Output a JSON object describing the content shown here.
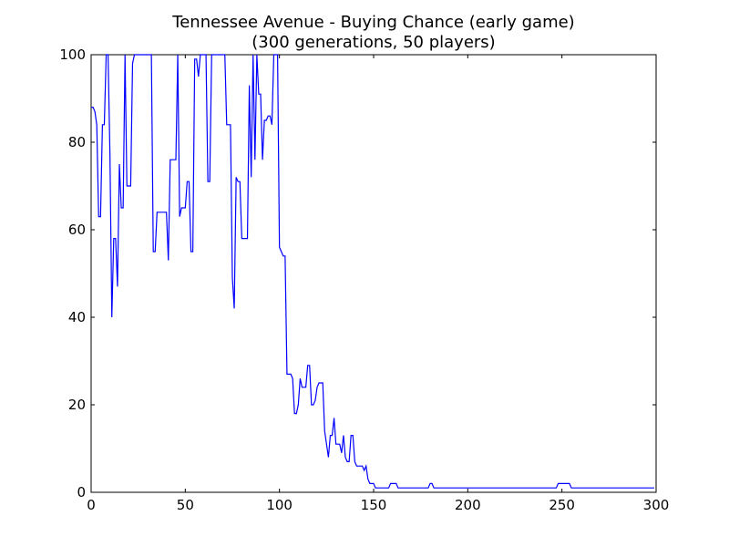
{
  "chart_data": {
    "type": "line",
    "title": "Tennessee Avenue - Buying Chance (early game)",
    "subtitle": "(300 generations, 50 players)",
    "color": "#0000ff",
    "xlim": [
      0,
      300
    ],
    "xticks": [
      0,
      50,
      100,
      150,
      200,
      250,
      300
    ],
    "ylim": [
      0,
      100
    ],
    "yticks": [
      0,
      20,
      40,
      60,
      80,
      100
    ],
    "x": [
      0,
      1,
      2,
      3,
      4,
      5,
      6,
      7,
      8,
      9,
      10,
      11,
      12,
      13,
      14,
      15,
      16,
      17,
      18,
      19,
      20,
      21,
      22,
      23,
      24,
      25,
      26,
      27,
      28,
      29,
      30,
      31,
      32,
      33,
      34,
      35,
      36,
      37,
      38,
      39,
      40,
      41,
      42,
      43,
      44,
      45,
      46,
      47,
      48,
      49,
      50,
      51,
      52,
      53,
      54,
      55,
      56,
      57,
      58,
      59,
      60,
      61,
      62,
      63,
      64,
      65,
      66,
      67,
      68,
      69,
      70,
      71,
      72,
      73,
      74,
      75,
      76,
      77,
      78,
      79,
      80,
      81,
      82,
      83,
      84,
      85,
      86,
      87,
      88,
      89,
      90,
      91,
      92,
      93,
      94,
      95,
      96,
      97,
      98,
      99,
      100,
      101,
      102,
      103,
      104,
      105,
      106,
      107,
      108,
      109,
      110,
      111,
      112,
      113,
      114,
      115,
      116,
      117,
      118,
      119,
      120,
      121,
      122,
      123,
      124,
      125,
      126,
      127,
      128,
      129,
      130,
      131,
      132,
      133,
      134,
      135,
      136,
      137,
      138,
      139,
      140,
      141,
      142,
      143,
      144,
      145,
      146,
      147,
      148,
      149,
      150,
      151,
      152,
      153,
      154,
      155,
      156,
      157,
      158,
      159,
      160,
      161,
      162,
      163,
      164,
      165,
      166,
      167,
      168,
      169,
      170,
      171,
      172,
      173,
      174,
      175,
      176,
      177,
      178,
      179,
      180,
      181,
      182,
      183,
      184,
      185,
      186,
      187,
      188,
      189,
      190,
      191,
      192,
      193,
      194,
      195,
      196,
      197,
      198,
      199,
      200,
      201,
      202,
      203,
      204,
      205,
      206,
      207,
      208,
      209,
      210,
      211,
      212,
      213,
      214,
      215,
      216,
      217,
      218,
      219,
      220,
      221,
      222,
      223,
      224,
      225,
      226,
      227,
      228,
      229,
      230,
      231,
      232,
      233,
      234,
      235,
      236,
      237,
      238,
      239,
      240,
      241,
      242,
      243,
      244,
      245,
      246,
      247,
      248,
      249,
      250,
      251,
      252,
      253,
      254,
      255,
      256,
      257,
      258,
      259,
      260,
      261,
      262,
      263,
      264,
      265,
      266,
      267,
      268,
      269,
      270,
      271,
      272,
      273,
      274,
      275,
      276,
      277,
      278,
      279,
      280,
      281,
      282,
      283,
      284,
      285,
      286,
      287,
      288,
      289,
      290,
      291,
      292,
      293,
      294,
      295,
      296,
      297,
      298,
      299
    ],
    "values": [
      88,
      88,
      87,
      84,
      63,
      63,
      84,
      84,
      100,
      100,
      77,
      40,
      58,
      58,
      47,
      75,
      65,
      65,
      100,
      70,
      70,
      70,
      98,
      100,
      100,
      100,
      100,
      100,
      100,
      100,
      100,
      100,
      100,
      55,
      55,
      64,
      64,
      64,
      64,
      64,
      64,
      53,
      76,
      76,
      76,
      76,
      100,
      63,
      65,
      65,
      65,
      71,
      71,
      55,
      55,
      99,
      99,
      95,
      100,
      100,
      100,
      100,
      71,
      71,
      100,
      100,
      100,
      100,
      100,
      100,
      100,
      100,
      84,
      84,
      84,
      49,
      42,
      72,
      71,
      71,
      58,
      58,
      58,
      58,
      93,
      72,
      100,
      76,
      100,
      91,
      91,
      76,
      85,
      85,
      86,
      86,
      84,
      100,
      100,
      100,
      56,
      55,
      54,
      54,
      27,
      27,
      27,
      26,
      18,
      18,
      20,
      26,
      24,
      24,
      24,
      29,
      29,
      20,
      20,
      21,
      24,
      25,
      25,
      25,
      14,
      11,
      8,
      13,
      13,
      17,
      11,
      11,
      11,
      9,
      13,
      8,
      7,
      7,
      13,
      13,
      7,
      6,
      6,
      6,
      6,
      5,
      6,
      3,
      2,
      2,
      2,
      1,
      1,
      1,
      1,
      1,
      1,
      1,
      1,
      2,
      2,
      2,
      2,
      1,
      1,
      1,
      1,
      1,
      1,
      1,
      1,
      1,
      1,
      1,
      1,
      1,
      1,
      1,
      1,
      1,
      2,
      2,
      1,
      1,
      1,
      1,
      1,
      1,
      1,
      1,
      1,
      1,
      1,
      1,
      1,
      1,
      1,
      1,
      1,
      1,
      1,
      1,
      1,
      1,
      1,
      1,
      1,
      1,
      1,
      1,
      1,
      1,
      1,
      1,
      1,
      1,
      1,
      1,
      1,
      1,
      1,
      1,
      1,
      1,
      1,
      1,
      1,
      1,
      1,
      1,
      1,
      1,
      1,
      1,
      1,
      1,
      1,
      1,
      1,
      1,
      1,
      1,
      1,
      1,
      1,
      1,
      1,
      1,
      2,
      2,
      2,
      2,
      2,
      2,
      2,
      1,
      1,
      1,
      1,
      1,
      1,
      1,
      1,
      1,
      1,
      1,
      1,
      1,
      1,
      1,
      1,
      1,
      1,
      1,
      1,
      1,
      1,
      1,
      1,
      1,
      1,
      1,
      1,
      1,
      1,
      1,
      1,
      1,
      1,
      1,
      1,
      1,
      1,
      1,
      1,
      1,
      1,
      1,
      1,
      1
    ]
  }
}
